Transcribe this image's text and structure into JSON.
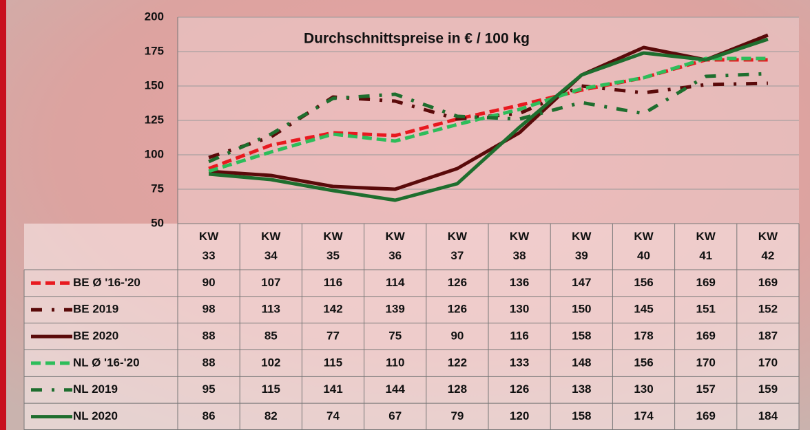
{
  "chart_data": {
    "type": "line",
    "title": "Durchschnittspreise in € / 100 kg",
    "categories": [
      "KW 33",
      "KW 34",
      "KW 35",
      "KW 36",
      "KW 37",
      "KW 38",
      "KW 39",
      "KW 40",
      "KW 41",
      "KW 42"
    ],
    "ylim": [
      50,
      200
    ],
    "yticks": [
      50,
      75,
      100,
      125,
      150,
      175,
      200
    ],
    "grid": true,
    "series": [
      {
        "name": "BE Ø '16-'20",
        "color": "#e8191f",
        "style": "dashed",
        "values": [
          90,
          107,
          116,
          114,
          126,
          136,
          147,
          156,
          169,
          169
        ]
      },
      {
        "name": "BE 2019",
        "color": "#5a0a0a",
        "style": "dashdot",
        "values": [
          98,
          113,
          142,
          139,
          126,
          130,
          150,
          145,
          151,
          152
        ]
      },
      {
        "name": "BE 2020",
        "color": "#5a0a0a",
        "style": "solid",
        "values": [
          88,
          85,
          77,
          75,
          90,
          116,
          158,
          178,
          169,
          187
        ]
      },
      {
        "name": "NL Ø '16-'20",
        "color": "#2dbd5a",
        "style": "dashed",
        "values": [
          88,
          102,
          115,
          110,
          122,
          133,
          148,
          156,
          170,
          170
        ]
      },
      {
        "name": "NL 2019",
        "color": "#1e6e2e",
        "style": "dashdot",
        "values": [
          95,
          115,
          141,
          144,
          128,
          126,
          138,
          130,
          157,
          159
        ]
      },
      {
        "name": "NL 2020",
        "color": "#1e6e2e",
        "style": "solid",
        "values": [
          86,
          82,
          74,
          67,
          79,
          120,
          158,
          174,
          169,
          184
        ]
      }
    ]
  }
}
